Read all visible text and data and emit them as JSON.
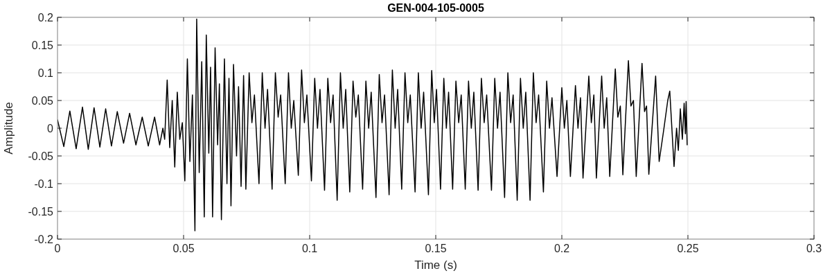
{
  "chart_data": {
    "type": "line",
    "title": "GEN-004-105-0005",
    "xlabel": "Time (s)",
    "ylabel": "Amplitude",
    "xlim": [
      0,
      0.3
    ],
    "xticks": [
      0,
      0.05,
      0.1,
      0.15,
      0.2,
      0.25,
      0.3
    ],
    "ylim": [
      -0.2,
      0.2
    ],
    "yticks": [
      -0.2,
      -0.15,
      -0.1,
      -0.05,
      0,
      0.05,
      0.1,
      0.15,
      0.2
    ],
    "grid": true,
    "line_style": "solid",
    "series": [
      {
        "color": "#000000",
        "x": [
          0,
          0.0025,
          0.0049,
          0.0074,
          0.0099,
          0.0122,
          0.0145,
          0.0168,
          0.0191,
          0.0214,
          0.0237,
          0.0262,
          0.0286,
          0.0311,
          0.0336,
          0.036,
          0.0385,
          0.0405,
          0.0418,
          0.0425,
          0.0435,
          0.0445,
          0.0455,
          0.0465,
          0.0475,
          0.0485,
          0.0495,
          0.0505,
          0.0515,
          0.0525,
          0.0535,
          0.0545,
          0.0552,
          0.0562,
          0.0572,
          0.0582,
          0.059,
          0.06,
          0.0607,
          0.0615,
          0.0625,
          0.0635,
          0.0642,
          0.065,
          0.0662,
          0.0672,
          0.068,
          0.0688,
          0.0698,
          0.071,
          0.0718,
          0.0728,
          0.0738,
          0.0747,
          0.076,
          0.0771,
          0.0781,
          0.0799,
          0.0812,
          0.0823,
          0.0833,
          0.0851,
          0.0864,
          0.0875,
          0.0885,
          0.0903,
          0.0916,
          0.0927,
          0.0937,
          0.0955,
          0.0968,
          0.0979,
          0.0989,
          0.1007,
          0.102,
          0.1031,
          0.1041,
          0.1059,
          0.1072,
          0.1083,
          0.1093,
          0.1109,
          0.1122,
          0.1133,
          0.1143,
          0.1159,
          0.1172,
          0.1183,
          0.1193,
          0.121,
          0.1223,
          0.1234,
          0.1244,
          0.1263,
          0.1276,
          0.1287,
          0.1297,
          0.1315,
          0.1328,
          0.1339,
          0.1349,
          0.1365,
          0.1378,
          0.1389,
          0.1399,
          0.1418,
          0.1431,
          0.1442,
          0.1452,
          0.1471,
          0.1484,
          0.1494,
          0.1503,
          0.1519,
          0.1532,
          0.1542,
          0.1551,
          0.1567,
          0.158,
          0.1591,
          0.1601,
          0.1617,
          0.163,
          0.1641,
          0.1651,
          0.1668,
          0.1681,
          0.1692,
          0.1702,
          0.1721,
          0.1734,
          0.1745,
          0.1755,
          0.1773,
          0.1786,
          0.1797,
          0.1807,
          0.1823,
          0.1836,
          0.1847,
          0.1857,
          0.1874,
          0.1887,
          0.1898,
          0.1908,
          0.1927,
          0.194,
          0.1951,
          0.1961,
          0.1981,
          0.2,
          0.201,
          0.202,
          0.2034,
          0.2054,
          0.2064,
          0.2074,
          0.2084,
          0.2107,
          0.2117,
          0.2127,
          0.2137,
          0.2158,
          0.2168,
          0.2178,
          0.219,
          0.2212,
          0.2222,
          0.2232,
          0.2242,
          0.2264,
          0.2274,
          0.2284,
          0.2295,
          0.2318,
          0.2328,
          0.2336,
          0.2345,
          0.2372,
          0.2386,
          0.2405,
          0.242,
          0.2428,
          0.2445,
          0.2455,
          0.2462,
          0.247,
          0.2478,
          0.2485,
          0.249,
          0.2493,
          0.2497
        ],
        "values": [
          0.015,
          -0.033,
          0.031,
          -0.037,
          0.038,
          -0.038,
          0.037,
          -0.034,
          0.035,
          -0.032,
          0.03,
          -0.027,
          0.027,
          -0.03,
          0.02,
          -0.032,
          0.02,
          -0.03,
          0,
          -0.02,
          0.087,
          -0.035,
          0.05,
          -0.07,
          0.065,
          -0.02,
          0.01,
          -0.095,
          0.125,
          -0.06,
          0.06,
          -0.185,
          0.197,
          -0.08,
          0.12,
          -0.16,
          0.168,
          -0.045,
          0.11,
          -0.16,
          0.145,
          -0.03,
          0.08,
          -0.165,
          0.125,
          -0.1,
          0.09,
          -0.14,
          0.115,
          -0.05,
          0.075,
          -0.105,
          0.095,
          -0.11,
          0.1,
          0.01,
          0.06,
          -0.1,
          0.1,
          0,
          0.07,
          -0.11,
          0.1,
          0.02,
          0.06,
          -0.1,
          0.1,
          0,
          0.05,
          -0.085,
          0.105,
          0.01,
          0.06,
          -0.095,
          0.09,
          0,
          0.07,
          -0.112,
          0.09,
          0.01,
          0.06,
          -0.13,
          0.1,
          0,
          0.07,
          -0.115,
          0.085,
          0.02,
          0.06,
          -0.11,
          0.085,
          0,
          0.065,
          -0.125,
          0.097,
          0.01,
          0.06,
          -0.12,
          0.105,
          0,
          0.07,
          -0.11,
          0.1,
          0.01,
          0.06,
          -0.115,
          0.1,
          0,
          0.065,
          -0.12,
          0.104,
          0.01,
          0.07,
          -0.11,
          0.09,
          0,
          0.065,
          -0.11,
          0.085,
          0.01,
          0.06,
          -0.11,
          0.085,
          0,
          0.065,
          -0.112,
          0.09,
          0.01,
          0.06,
          -0.112,
          0.09,
          0,
          0.065,
          -0.125,
          0.1,
          0.01,
          0.06,
          -0.13,
          0.09,
          0,
          0.065,
          -0.13,
          0.1,
          0.01,
          0.06,
          -0.115,
          0.085,
          0,
          0.055,
          -0.087,
          0.073,
          0,
          0.05,
          -0.087,
          0.077,
          0,
          0.055,
          -0.09,
          0.094,
          0.01,
          0.06,
          -0.09,
          0.094,
          0,
          0.055,
          -0.087,
          0.107,
          0.02,
          0.04,
          -0.084,
          0.122,
          0.04,
          0.05,
          -0.087,
          0.117,
          0.03,
          0.04,
          -0.083,
          0.094,
          -0.06,
          0,
          0.05,
          0.067,
          -0.069,
          0,
          -0.04,
          0.035,
          -0.02,
          0.045,
          -0.01,
          0.048,
          -0.03
        ]
      }
    ]
  }
}
